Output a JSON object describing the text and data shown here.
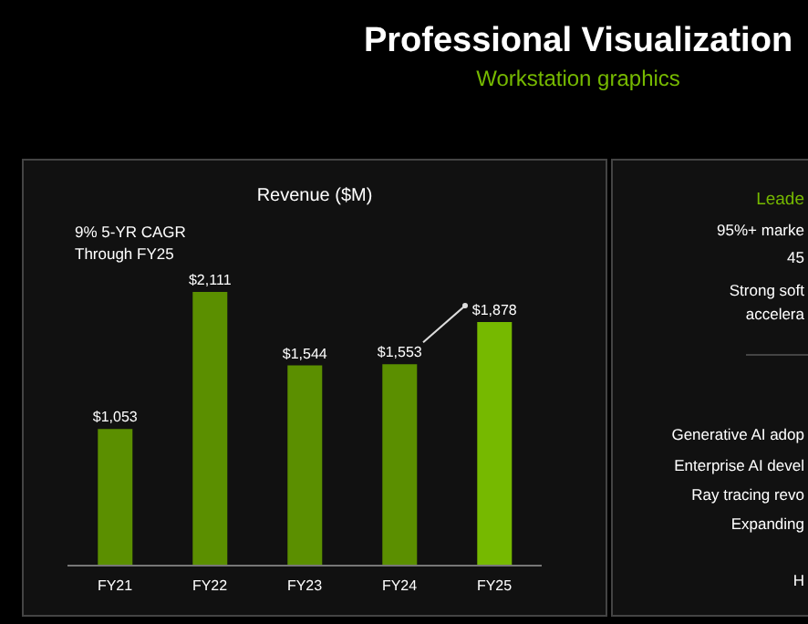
{
  "chart_data": [
    {
      "type": "other",
      "title": "Professional Visualization",
      "subtitle": "Workstation graphics"
    },
    {
      "type": "bar",
      "title": "Revenue ($M)",
      "annotations": [
        "9% 5-YR CAGR\nThrough FY25"
      ],
      "categories": [
        "FY21",
        "FY22",
        "FY23",
        "FY24",
        "FY25"
      ],
      "values": [
        1053,
        2111,
        1544,
        1553,
        1878
      ],
      "value_labels": [
        "$1,053",
        "$2,111",
        "$1,544",
        "$1,553",
        "$1,878"
      ],
      "colors": [
        "#5b8f00",
        "#5b8f00",
        "#5b8f00",
        "#5b8f00",
        "#76b900"
      ]
    },
    {
      "type": "other",
      "title": "Leade",
      "annotations": [
        "95%+ marke",
        "45",
        "Strong soft",
        "accelera",
        "Generative AI adop",
        "Enterprise AI devel",
        "Ray tracing revo",
        "Expanding",
        "H"
      ]
    }
  ]
}
